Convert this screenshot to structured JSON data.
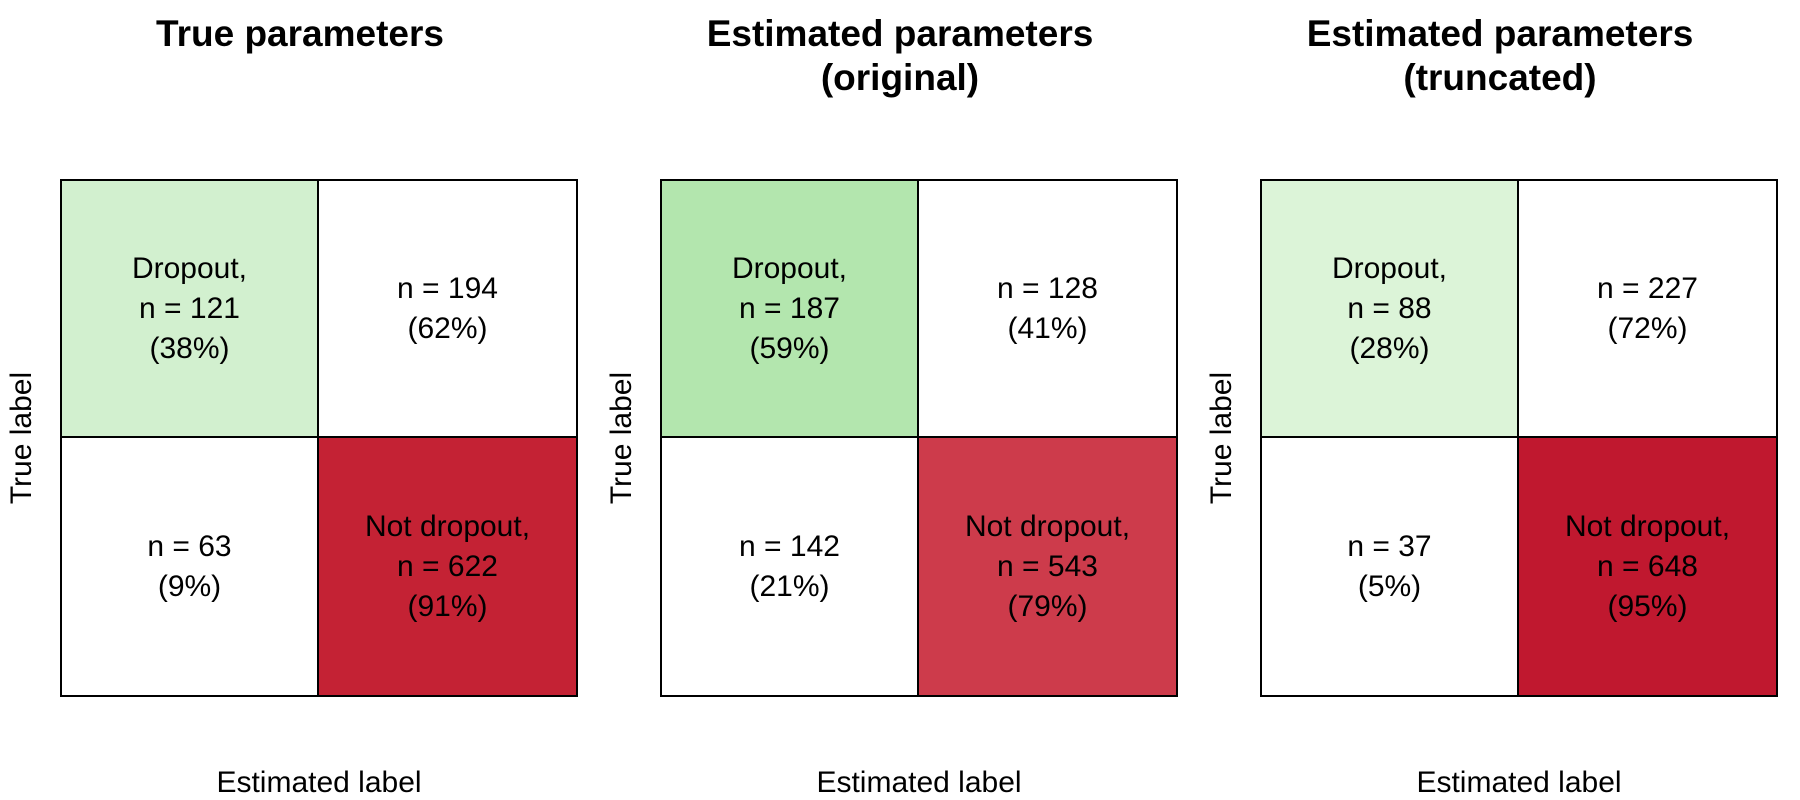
{
  "chart_data": [
    {
      "type": "heatmap",
      "title": "True parameters",
      "xlabel": "Estimated label",
      "ylabel": "True label",
      "cells": [
        [
          {
            "text": "Dropout,\nn = 121\n(38%)",
            "count": 121,
            "percent": 38,
            "color": "#d2f0cf"
          },
          {
            "text": "n = 194\n(62%)",
            "count": 194,
            "percent": 62,
            "color": "#ffffff"
          }
        ],
        [
          {
            "text": "n = 63\n(9%)",
            "count": 63,
            "percent": 9,
            "color": "#ffffff"
          },
          {
            "text": "Not dropout,\nn = 622\n(91%)",
            "count": 622,
            "percent": 91,
            "color": "#c42234"
          }
        ]
      ]
    },
    {
      "type": "heatmap",
      "title": "Estimated parameters\n(original)",
      "xlabel": "Estimated label",
      "ylabel": "True label",
      "cells": [
        [
          {
            "text": "Dropout,\nn = 187\n(59%)",
            "count": 187,
            "percent": 59,
            "color": "#b3e6ae"
          },
          {
            "text": "n = 128\n(41%)",
            "count": 128,
            "percent": 41,
            "color": "#ffffff"
          }
        ],
        [
          {
            "text": "n = 142\n(21%)",
            "count": 142,
            "percent": 21,
            "color": "#ffffff"
          },
          {
            "text": "Not dropout,\nn = 543\n(79%)",
            "count": 543,
            "percent": 79,
            "color": "#cd3b4b"
          }
        ]
      ]
    },
    {
      "type": "heatmap",
      "title": "Estimated parameters\n(truncated)",
      "xlabel": "Estimated label",
      "ylabel": "True label",
      "cells": [
        [
          {
            "text": "Dropout,\nn = 88\n(28%)",
            "count": 88,
            "percent": 28,
            "color": "#dcf4d8"
          },
          {
            "text": "n = 227\n(72%)",
            "count": 227,
            "percent": 72,
            "color": "#ffffff"
          }
        ],
        [
          {
            "text": "n = 37\n(5%)",
            "count": 37,
            "percent": 5,
            "color": "#ffffff"
          },
          {
            "text": "Not dropout,\nn = 648\n(95%)",
            "count": 648,
            "percent": 95,
            "color": "#c0182f"
          }
        ]
      ]
    }
  ]
}
